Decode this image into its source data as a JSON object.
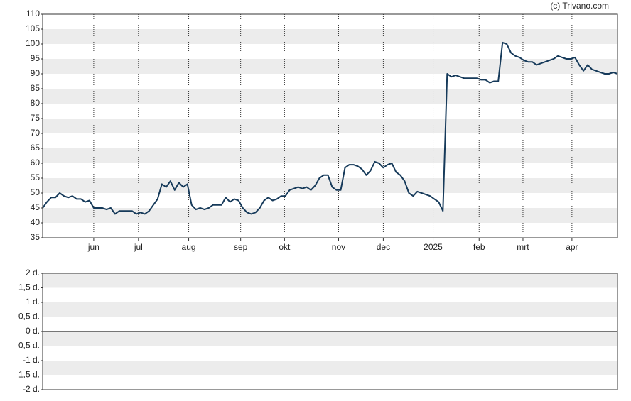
{
  "chart_data": [
    {
      "type": "line",
      "credit": "(c) Trivano.com",
      "series": [
        {
          "color": "#163a5a",
          "values": [
            45,
            47,
            48.5,
            48.5,
            50,
            49,
            48.5,
            49,
            48,
            48,
            47,
            47.5,
            45,
            45,
            45,
            44.5,
            45,
            43,
            44,
            44,
            44,
            44,
            43,
            43.5,
            43,
            44,
            46,
            48,
            53,
            52,
            54,
            51,
            53.5,
            52,
            53,
            46,
            44.5,
            45,
            44.5,
            45,
            46,
            46,
            46,
            48.5,
            47,
            48,
            47.5,
            45,
            43.5,
            43,
            43.5,
            45,
            47.5,
            48.5,
            47.5,
            48,
            49,
            49,
            51,
            51.5,
            52,
            51.5,
            52,
            51,
            52.5,
            55,
            56,
            56,
            52,
            51,
            51,
            58.5,
            59.5,
            59.5,
            59,
            58,
            56,
            57.5,
            60.5,
            60,
            58.5,
            59.5,
            60,
            57,
            56,
            54,
            50,
            49,
            50.5,
            50,
            49.5,
            49,
            48,
            47,
            44,
            90,
            89,
            89.5,
            89,
            88.5,
            88.5,
            88.5,
            88.5,
            88,
            88,
            87,
            87.5,
            87.5,
            100.5,
            100,
            97,
            96,
            95.5,
            94.5,
            94,
            94,
            93,
            93.5,
            94,
            94.5,
            95,
            96,
            95.5,
            95,
            95,
            95.5,
            93,
            91,
            93,
            91.5,
            91,
            90.5,
            90,
            90,
            90.5,
            90
          ]
        }
      ],
      "xlim": [
        0,
        135
      ],
      "xticks": [
        {
          "value": 12,
          "label": "jun"
        },
        {
          "value": 22.5,
          "label": "jul"
        },
        {
          "value": 34.3,
          "label": "aug"
        },
        {
          "value": 46.5,
          "label": "sep"
        },
        {
          "value": 56.8,
          "label": "okt"
        },
        {
          "value": 69.5,
          "label": "nov"
        },
        {
          "value": 80,
          "label": "dec"
        },
        {
          "value": 91.7,
          "label": "2025"
        },
        {
          "value": 102.5,
          "label": "feb"
        },
        {
          "value": 112.8,
          "label": "mrt"
        },
        {
          "value": 124.3,
          "label": "apr"
        }
      ],
      "ylim": [
        35,
        110
      ],
      "yticks": [
        35,
        40,
        45,
        50,
        55,
        60,
        65,
        70,
        75,
        80,
        85,
        90,
        95,
        100,
        105,
        110
      ]
    },
    {
      "type": "line",
      "series": [],
      "ylim": [
        -2,
        2
      ],
      "yticks": [
        {
          "value": 2,
          "label": "2 d."
        },
        {
          "value": 1.5,
          "label": "1,5 d."
        },
        {
          "value": 1,
          "label": "1 d."
        },
        {
          "value": 0.5,
          "label": "0,5 d."
        },
        {
          "value": 0,
          "label": "0 d."
        },
        {
          "value": -0.5,
          "label": "-0,5 d."
        },
        {
          "value": -1,
          "label": "-1 d."
        },
        {
          "value": -1.5,
          "label": "-1,5 d."
        },
        {
          "value": -2,
          "label": "-2 d."
        }
      ]
    }
  ]
}
